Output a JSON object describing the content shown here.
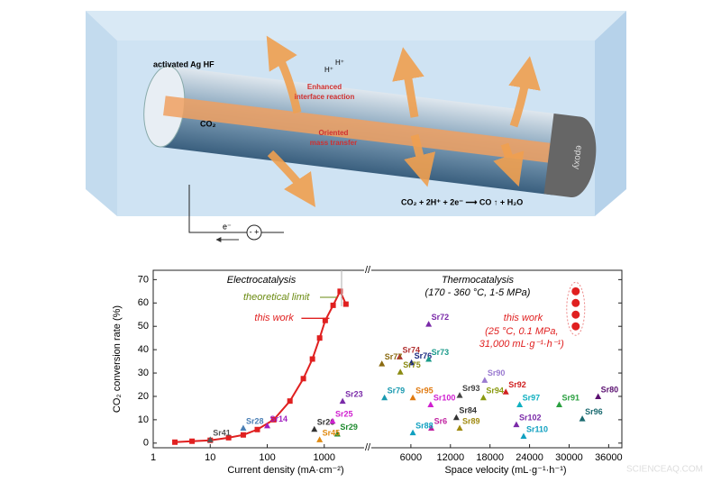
{
  "illustration": {
    "host_label": "activated Ag HF",
    "proton_labels": [
      "H⁺",
      "H⁺"
    ],
    "interface_label": [
      "Enhanced",
      "interface reaction"
    ],
    "gas_label": "CO₂",
    "transfer_label": [
      "Oriented",
      "mass transfer"
    ],
    "cap_label": "epoxy",
    "equation": "CO₂ + 2H⁺ + 2e⁻ ⟶ CO ↑ + H₂O",
    "electron_label": "e⁻"
  },
  "chart_data": [
    {
      "type": "line",
      "title": "Electrocatalysis",
      "annotations": [
        "theoretical limit"
      ],
      "x_label": "Current density (mA·cm⁻²)",
      "y_label": "CO₂ conversion rate (%)",
      "xscale": "log",
      "xlim": [
        1,
        5000
      ],
      "xticks": [
        1,
        10,
        100,
        1000
      ],
      "ylim": [
        -2,
        74
      ],
      "yticks": [
        0,
        10,
        20,
        30,
        40,
        50,
        60,
        70
      ],
      "series": [
        {
          "name": "this work",
          "color": "#e02020",
          "x": [
            2.4,
            4.8,
            10,
            21,
            38,
            67,
            130,
            250,
            430,
            620,
            830,
            1040,
            1430,
            1900,
            2400
          ],
          "values": [
            0.4,
            0.8,
            1.2,
            2.3,
            3.5,
            5.8,
            10,
            18,
            27.6,
            36,
            45,
            52.5,
            59,
            65,
            59.5
          ]
        },
        {
          "name": "Sr41",
          "color": "#555555",
          "x": [
            10
          ],
          "values": [
            1.5
          ]
        },
        {
          "name": "Sr28",
          "color": "#4a7fb5",
          "x": [
            38
          ],
          "values": [
            6.5
          ]
        },
        {
          "name": "Sr14",
          "color": "#a020c0",
          "x": [
            100
          ],
          "values": [
            7.5
          ]
        },
        {
          "name": "Sr26",
          "color": "#333333",
          "x": [
            670
          ],
          "values": [
            6
          ]
        },
        {
          "name": "Sr25",
          "color": "#d020d0",
          "x": [
            1400
          ],
          "values": [
            9.5
          ]
        },
        {
          "name": "Sr29",
          "color": "#1e8a2e",
          "x": [
            1700
          ],
          "values": [
            4
          ]
        },
        {
          "name": "Sr45",
          "color": "#e08a10",
          "x": [
            830
          ],
          "values": [
            1.5
          ]
        },
        {
          "name": "Sr23",
          "color": "#7a2aa8",
          "x": [
            2100
          ],
          "values": [
            18
          ]
        }
      ]
    },
    {
      "type": "scatter",
      "title": "Thermocatalysis",
      "subtitle": "(170 - 360 °C, 1-5 MPa)",
      "annotations": [
        "(25 °C, 0.1 MPa,",
        "31,000 mL·g⁻¹·h⁻¹)"
      ],
      "x_label": "Space velocity (mL·g⁻¹·h⁻¹)",
      "xlim": [
        0,
        38000
      ],
      "xticks": [
        6000,
        12000,
        18000,
        24000,
        30000,
        36000
      ],
      "ylim": [
        -2,
        74
      ],
      "yticks": [
        0,
        10,
        20,
        30,
        40,
        50,
        60,
        70
      ],
      "series": [
        {
          "name": "this work",
          "color": "#e02020",
          "x": [
            31000,
            31000,
            31000,
            31000
          ],
          "values": [
            65,
            60,
            55,
            50
          ]
        },
        {
          "name": "Sr72",
          "color": "#7a2aa8",
          "x": [
            8700
          ],
          "values": [
            51
          ]
        },
        {
          "name": "Sr74",
          "color": "#b03030",
          "x": [
            4300
          ],
          "values": [
            37
          ]
        },
        {
          "name": "Sr77",
          "color": "#8a6a10",
          "x": [
            1600
          ],
          "values": [
            34
          ]
        },
        {
          "name": "Sr76",
          "color": "#1a2a80",
          "x": [
            6100
          ],
          "values": [
            34.5
          ]
        },
        {
          "name": "Sr73",
          "color": "#1a9a8a",
          "x": [
            8700
          ],
          "values": [
            36
          ]
        },
        {
          "name": "Sr75",
          "color": "#8a8a10",
          "x": [
            4400
          ],
          "values": [
            30.5
          ]
        },
        {
          "name": "Sr90",
          "color": "#9a7ad0",
          "x": [
            17200
          ],
          "values": [
            27
          ]
        },
        {
          "name": "Sr92",
          "color": "#d02020",
          "x": [
            20400
          ],
          "values": [
            22
          ]
        },
        {
          "name": "Sr93",
          "color": "#444444",
          "x": [
            13400
          ],
          "values": [
            20.5
          ]
        },
        {
          "name": "Sr94",
          "color": "#8a9a10",
          "x": [
            17000
          ],
          "values": [
            19.5
          ]
        },
        {
          "name": "Sr79",
          "color": "#1a9ab0",
          "x": [
            2000
          ],
          "values": [
            19.5
          ]
        },
        {
          "name": "Sr95",
          "color": "#e07a10",
          "x": [
            6300
          ],
          "values": [
            19.5
          ]
        },
        {
          "name": "Sr100",
          "color": "#d020d0",
          "x": [
            9000
          ],
          "values": [
            16.5
          ]
        },
        {
          "name": "Sr97",
          "color": "#10b0c0",
          "x": [
            22500
          ],
          "values": [
            16.5
          ]
        },
        {
          "name": "Sr91",
          "color": "#2aa040",
          "x": [
            28500
          ],
          "values": [
            16.5
          ]
        },
        {
          "name": "Sr80",
          "color": "#5a1070",
          "x": [
            34400
          ],
          "values": [
            20
          ]
        },
        {
          "name": "Sr96",
          "color": "#1a6a70",
          "x": [
            32000
          ],
          "values": [
            10.5
          ]
        },
        {
          "name": "Sr84",
          "color": "#333333",
          "x": [
            12900
          ],
          "values": [
            11
          ]
        },
        {
          "name": "Sr102",
          "color": "#7a2aa8",
          "x": [
            22000
          ],
          "values": [
            8
          ]
        },
        {
          "name": "Sr6",
          "color": "#c020a0",
          "x": [
            9100
          ],
          "values": [
            6.5
          ]
        },
        {
          "name": "Sr89",
          "color": "#a08a10",
          "x": [
            13400
          ],
          "values": [
            6.5
          ]
        },
        {
          "name": "Sr88",
          "color": "#10a0c0",
          "x": [
            6300
          ],
          "values": [
            4.5
          ]
        },
        {
          "name": "Sr110",
          "color": "#10a0c0",
          "x": [
            23100
          ],
          "values": [
            3
          ]
        }
      ]
    }
  ],
  "watermark": "SCIENCEAQ.COM"
}
